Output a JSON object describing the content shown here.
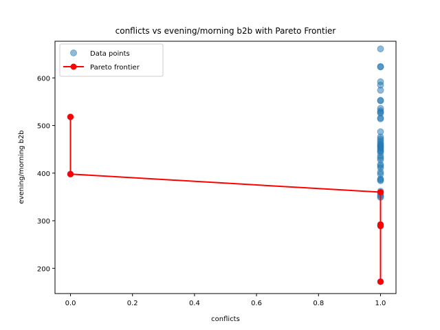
{
  "chart_data": {
    "type": "scatter",
    "title": "conflicts vs evening/morning b2b with Pareto Frontier",
    "xlabel": "conflicts",
    "ylabel": "evening/morning b2b",
    "xlim": [
      -0.05,
      1.05
    ],
    "ylim": [
      147,
      677
    ],
    "xticks": [
      0.0,
      0.2,
      0.4,
      0.6,
      0.8,
      1.0
    ],
    "xtick_labels": [
      "0.0",
      "0.2",
      "0.4",
      "0.6",
      "0.8",
      "1.0"
    ],
    "yticks": [
      200,
      300,
      400,
      500,
      600
    ],
    "ytick_labels": [
      "200",
      "300",
      "400",
      "500",
      "600"
    ],
    "grid": false,
    "legend_position": "top-left",
    "series": [
      {
        "name": "Data points",
        "kind": "scatter",
        "color": "#1f77b4",
        "points": [
          [
            0,
            518
          ],
          [
            0,
            398
          ],
          [
            1,
            661
          ],
          [
            1,
            624
          ],
          [
            1,
            623
          ],
          [
            1,
            592
          ],
          [
            1,
            585
          ],
          [
            1,
            574
          ],
          [
            1,
            553
          ],
          [
            1,
            552
          ],
          [
            1,
            536
          ],
          [
            1,
            531
          ],
          [
            1,
            528
          ],
          [
            1,
            526
          ],
          [
            1,
            516
          ],
          [
            1,
            514
          ],
          [
            1,
            487
          ],
          [
            1,
            476
          ],
          [
            1,
            472
          ],
          [
            1,
            468
          ],
          [
            1,
            464
          ],
          [
            1,
            461
          ],
          [
            1,
            458
          ],
          [
            1,
            456
          ],
          [
            1,
            454
          ],
          [
            1,
            451
          ],
          [
            1,
            448
          ],
          [
            1,
            446
          ],
          [
            1,
            443
          ],
          [
            1,
            436
          ],
          [
            1,
            432
          ],
          [
            1,
            428
          ],
          [
            1,
            418
          ],
          [
            1,
            415
          ],
          [
            1,
            411
          ],
          [
            1,
            402
          ],
          [
            1,
            398
          ],
          [
            1,
            388
          ],
          [
            1,
            386
          ],
          [
            1,
            384
          ],
          [
            1,
            362
          ],
          [
            1,
            358
          ],
          [
            1,
            354
          ],
          [
            1,
            351
          ],
          [
            1,
            349
          ],
          [
            1,
            292
          ],
          [
            1,
            289
          ],
          [
            1,
            172
          ]
        ]
      },
      {
        "name": "Pareto frontier",
        "kind": "line",
        "color": "#ff0000",
        "points": [
          [
            0,
            518
          ],
          [
            0,
            398
          ],
          [
            1,
            360
          ],
          [
            1,
            292
          ],
          [
            1,
            289
          ],
          [
            1,
            172
          ]
        ]
      }
    ]
  }
}
